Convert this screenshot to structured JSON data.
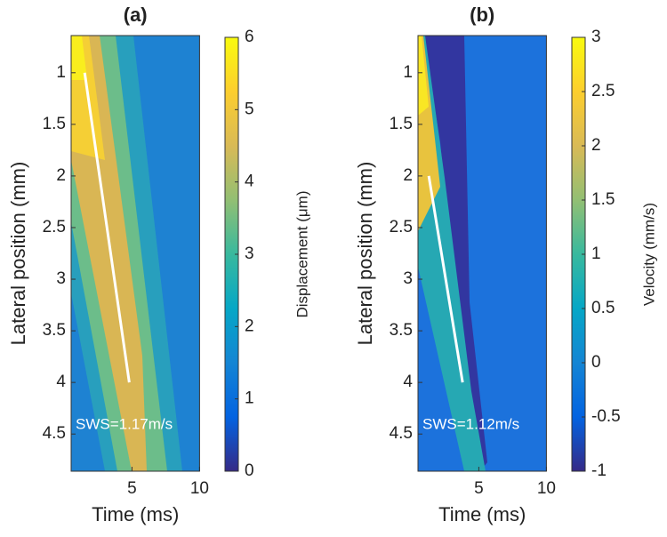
{
  "chart_data": [
    {
      "type": "heatmap",
      "title": "(a)",
      "xlabel": "Time (ms)",
      "ylabel": "Lateral position (mm)",
      "xlim": [
        0.5,
        10
      ],
      "xticks": [
        5,
        10
      ],
      "ylim": [
        0.64,
        4.86
      ],
      "yticks": [
        1,
        1.5,
        2,
        2.5,
        3,
        3.5,
        4,
        4.5
      ],
      "clabel": "Displacement (μm)",
      "clim": [
        0,
        6
      ],
      "cticks": [
        0,
        1,
        2,
        3,
        4,
        5,
        6
      ],
      "line": {
        "x": [
          1.5,
          4.8
        ],
        "y": [
          1,
          4
        ],
        "color": "#ffffff"
      },
      "annotation": "SWS=1.17m/s"
    },
    {
      "type": "heatmap",
      "title": "(b)",
      "xlabel": "Time (ms)",
      "ylabel": "Lateral position (mm)",
      "xlim": [
        0.5,
        10
      ],
      "xticks": [
        5,
        10
      ],
      "ylim": [
        0.64,
        4.86
      ],
      "yticks": [
        1,
        1.5,
        2,
        2.5,
        3,
        3.5,
        4,
        4.5
      ],
      "clabel": "Velocity (mm/s)",
      "clim": [
        -1,
        3
      ],
      "cticks": [
        -1,
        -0.5,
        0,
        0.5,
        1,
        1.5,
        2,
        2.5,
        3
      ],
      "line": {
        "x": [
          1.3,
          3.8
        ],
        "y": [
          2,
          4
        ],
        "color": "#ffffff"
      },
      "annotation": "SWS=1.12m/s"
    }
  ]
}
